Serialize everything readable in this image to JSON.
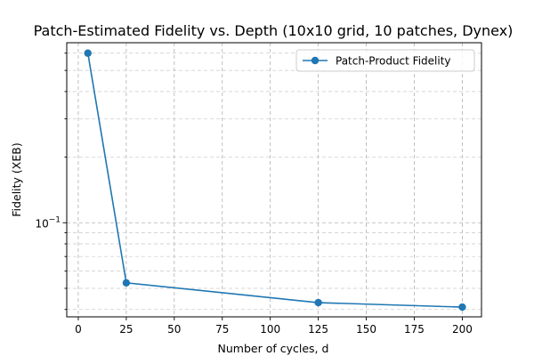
{
  "chart_data": {
    "type": "line",
    "title": "Patch-Estimated Fidelity vs. Depth (10x10 grid, 10 patches, Dynex)",
    "xlabel": "Number of cycles, d",
    "ylabel": "Fidelity (XEB)",
    "x_ticks": [
      "0",
      "25",
      "50",
      "75",
      "100",
      "125",
      "150",
      "175",
      "200"
    ],
    "y_tick_major": "10",
    "y_tick_major_exponent": "−1",
    "y_scale": "log",
    "xlim": [
      -6,
      210
    ],
    "ylim": [
      0.037,
      0.67
    ],
    "grid": true,
    "legend_position": "top-right",
    "series": [
      {
        "name": "Patch-Product Fidelity",
        "color": "#1f77b4",
        "marker": "circle",
        "x": [
          5,
          25,
          125,
          200
        ],
        "y": [
          0.6,
          0.053,
          0.043,
          0.041
        ]
      }
    ]
  }
}
